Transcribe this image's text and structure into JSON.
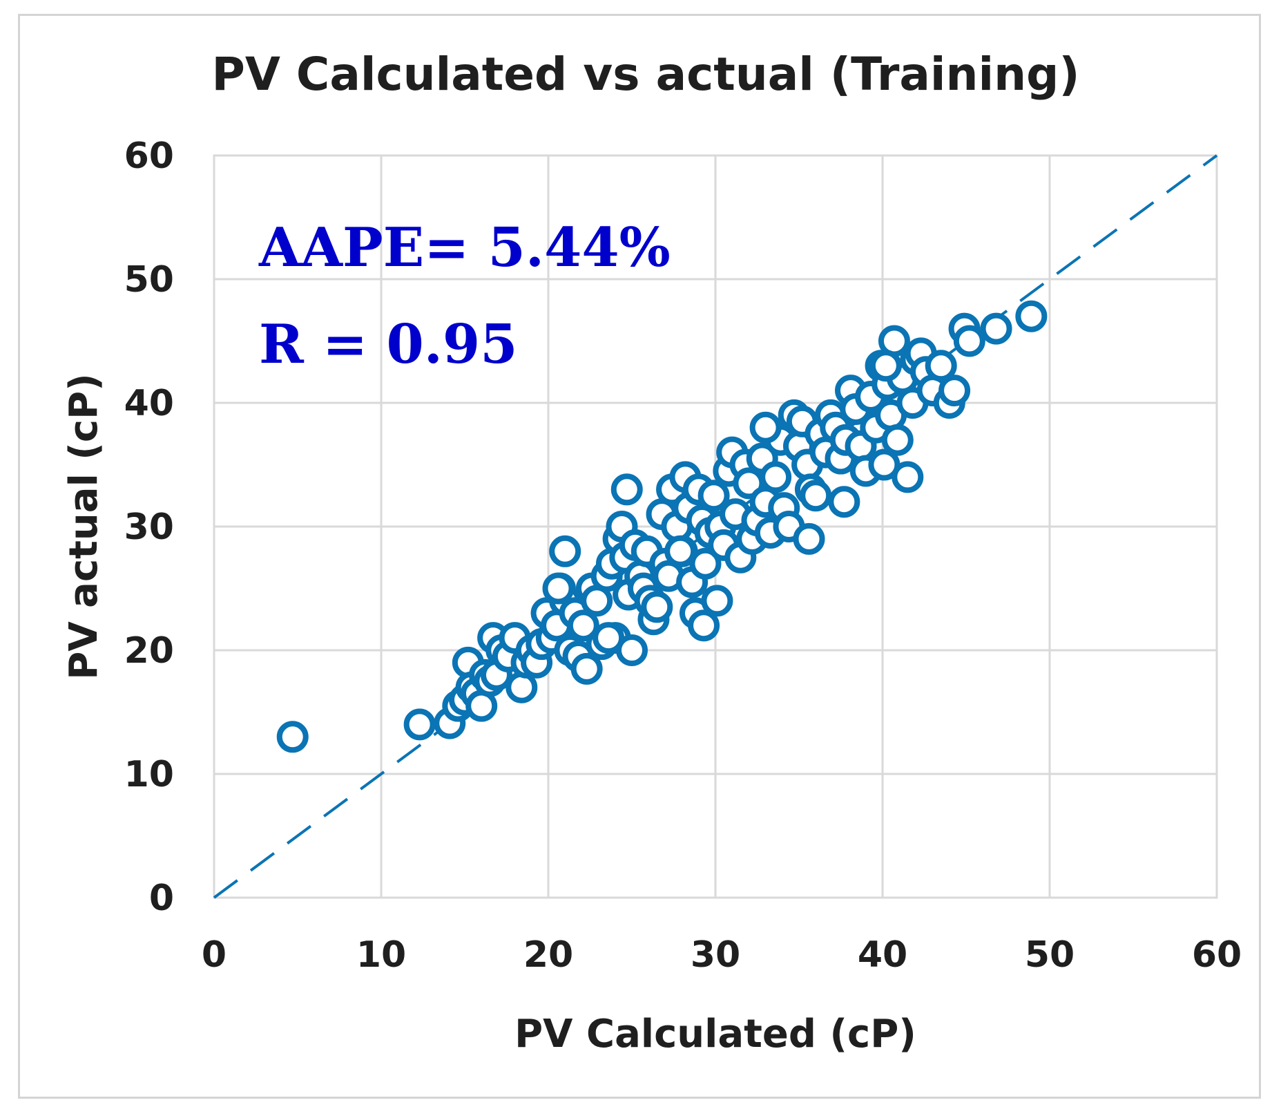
{
  "chart_data": {
    "type": "scatter",
    "title": "PV Calculated vs actual (Training)",
    "xlabel": "PV Calculated (cP)",
    "ylabel": "PV actual (cP)",
    "xlim": [
      0,
      60
    ],
    "ylim": [
      0,
      60
    ],
    "xticks": [
      "0",
      "10",
      "20",
      "30",
      "40",
      "50",
      "60"
    ],
    "yticks": [
      "0",
      "10",
      "20",
      "30",
      "40",
      "50",
      "60"
    ],
    "grid": true,
    "reference_line": {
      "type": "y=x",
      "style": "dashed"
    },
    "annotations": [
      "AAPE= 5.44%",
      "R = 0.95"
    ],
    "color": "#0a74b4",
    "x": [
      4.7,
      12.3,
      14.1,
      14.6,
      15.0,
      15.2,
      15.4,
      15.7,
      16.0,
      16.2,
      16.5,
      16.7,
      16.9,
      17.2,
      17.6,
      18.0,
      18.4,
      18.7,
      19.0,
      19.3,
      19.6,
      19.9,
      20.2,
      20.5,
      20.7,
      21.0,
      21.3,
      21.6,
      21.8,
      22.1,
      22.3,
      22.6,
      22.9,
      23.2,
      23.5,
      23.8,
      24.0,
      24.2,
      24.4,
      24.6,
      24.8,
      25.0,
      25.2,
      25.5,
      25.7,
      25.9,
      26.1,
      26.3,
      26.5,
      26.8,
      27.0,
      27.2,
      27.4,
      27.7,
      28.0,
      28.2,
      28.4,
      28.6,
      28.8,
      29.0,
      29.2,
      29.4,
      29.7,
      29.9,
      30.1,
      30.3,
      30.5,
      30.8,
      31.0,
      31.2,
      31.5,
      31.8,
      32.0,
      32.2,
      32.5,
      32.8,
      33.0,
      33.3,
      33.6,
      33.9,
      34.1,
      34.4,
      34.7,
      35.0,
      35.2,
      35.5,
      35.7,
      36.0,
      36.3,
      36.6,
      36.9,
      37.2,
      37.5,
      37.8,
      38.1,
      38.4,
      38.7,
      39.0,
      39.3,
      39.6,
      39.9,
      40.1,
      40.3,
      40.5,
      40.7,
      40.9,
      41.2,
      41.5,
      41.8,
      42.0,
      42.3,
      42.6,
      43.0,
      43.5,
      44.0,
      44.3,
      44.9,
      45.2,
      46.8,
      48.9,
      24.7,
      21.0,
      35.6,
      40.2,
      37.7,
      29.3,
      27.9,
      33.0,
      23.6,
      20.6
    ],
    "y": [
      13.0,
      14.0,
      14.1,
      15.5,
      16.0,
      19.0,
      17.0,
      16.5,
      15.5,
      18.0,
      17.5,
      21.0,
      18.0,
      20.0,
      19.5,
      21.0,
      17.0,
      19.0,
      20.0,
      19.0,
      20.5,
      23.0,
      21.0,
      22.0,
      25.0,
      24.0,
      20.0,
      23.0,
      19.5,
      22.0,
      18.5,
      25.0,
      24.0,
      20.5,
      26.0,
      27.0,
      21.0,
      29.0,
      30.0,
      27.5,
      24.5,
      20.0,
      28.5,
      26.0,
      25.0,
      28.0,
      24.0,
      22.5,
      23.5,
      31.0,
      27.0,
      26.0,
      33.0,
      30.0,
      28.0,
      34.0,
      31.5,
      25.5,
      23.0,
      33.0,
      30.5,
      27.0,
      29.5,
      32.5,
      24.0,
      30.0,
      28.5,
      34.5,
      36.0,
      31.0,
      27.5,
      35.0,
      33.5,
      29.0,
      30.5,
      35.5,
      32.0,
      29.5,
      34.0,
      37.0,
      31.5,
      30.0,
      39.0,
      36.5,
      38.5,
      35.0,
      33.0,
      32.5,
      37.5,
      36.0,
      39.0,
      38.0,
      35.5,
      37.0,
      41.0,
      39.5,
      36.5,
      34.5,
      40.5,
      38.0,
      43.0,
      35.0,
      41.5,
      39.0,
      45.0,
      37.0,
      42.0,
      34.0,
      40.0,
      43.5,
      44.0,
      42.5,
      41.0,
      43.0,
      40.0,
      41.0,
      46.0,
      45.0,
      46.0,
      47.0,
      33.0,
      28.0,
      29.0,
      43.0,
      32.0,
      22.0,
      28.0,
      38.0,
      21.0,
      25.0
    ]
  }
}
